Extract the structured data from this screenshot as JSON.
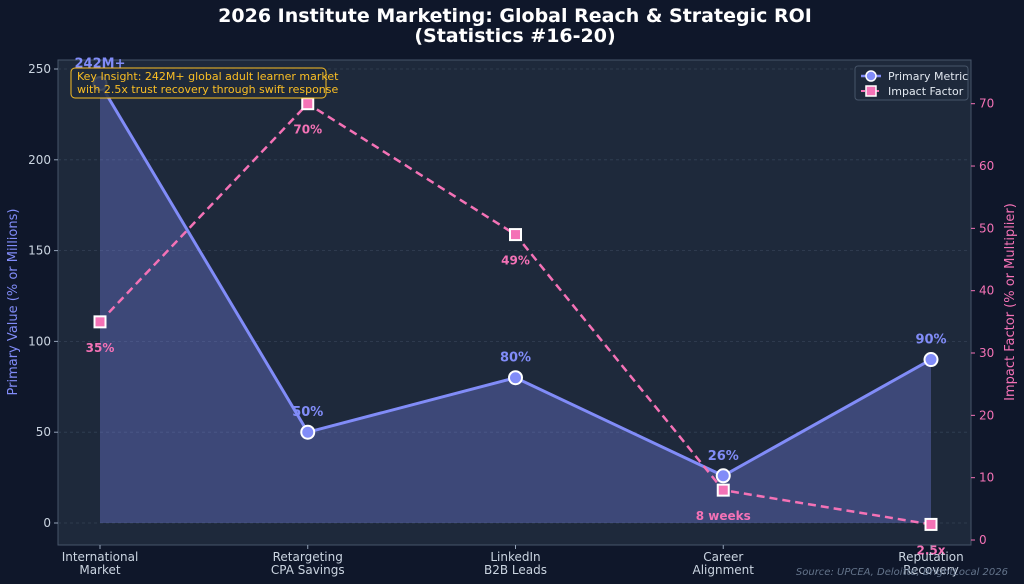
{
  "chart_data": {
    "type": "line",
    "title_line1": "2026 Institute Marketing: Global Reach & Strategic ROI",
    "title_line2": "(Statistics #16-20)",
    "categories": [
      [
        "International",
        "Market"
      ],
      [
        "Retargeting",
        "CPA Savings"
      ],
      [
        "LinkedIn",
        "B2B Leads"
      ],
      [
        "Career",
        "Alignment"
      ],
      [
        "Reputation",
        "Recovery"
      ]
    ],
    "ylabel_left": "Primary Value (% or Millions)",
    "ylabel_right": "Impact Factor (% or Multiplier)",
    "ylim_left": [
      0,
      250
    ],
    "ylim_right": [
      0,
      73
    ],
    "yticks_left": [
      0,
      50,
      100,
      150,
      200,
      250
    ],
    "yticks_right": [
      0,
      10,
      20,
      30,
      40,
      50,
      60,
      70
    ],
    "grid": true,
    "legend_position": "top-right",
    "series": [
      {
        "name": "Primary Metric",
        "axis": "left",
        "values": [
          242,
          50,
          80,
          26,
          90
        ],
        "labels": [
          "242M+",
          "50%",
          "80%",
          "26%",
          "90%"
        ],
        "color": "#818cf8",
        "style": "solid-filled",
        "marker": "circle"
      },
      {
        "name": "Impact Factor",
        "axis": "right",
        "values": [
          35,
          70,
          49,
          8,
          2.5
        ],
        "labels": [
          "35%",
          "70%",
          "49%",
          "8 weeks",
          "2.5x"
        ],
        "color": "#f472b6",
        "style": "dashed",
        "marker": "square"
      }
    ],
    "annotation": [
      "Key Insight: 242M+ global adult learner market",
      "with 2.5x trust recovery through swift response"
    ],
    "source": "Source: UPCEA, Deloitte, BrightLocal 2026"
  }
}
